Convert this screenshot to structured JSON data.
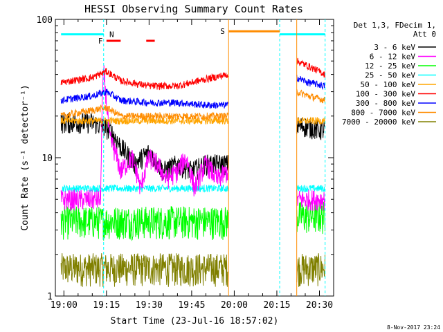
{
  "chart_data": {
    "type": "line",
    "title": "HESSI Observing Summary Count Rates",
    "xlabel": "Start Time (23-Jul-16 18:57:02)",
    "ylabel": "Count Rate (s⁻¹ detector⁻¹)",
    "x_tick_labels": [
      "19:00",
      "19:15",
      "19:30",
      "19:45",
      "20:00",
      "20:15",
      "20:30"
    ],
    "y_tick_labels": [
      "1",
      "10",
      "100"
    ],
    "y_scale": "log",
    "ylim": [
      1,
      100
    ],
    "xlim_minutes_after_19_00": [
      -3,
      95
    ],
    "legend_header": [
      "Det 1,3, FDecim 1,",
      "Att 0"
    ],
    "legend_position": "right",
    "footer_date": "8-Nov-2017 23:24",
    "series": [
      {
        "name": "3 - 6 keV",
        "color": "#000000",
        "x": [
          -1,
          10,
          16,
          20,
          25,
          30,
          35,
          40,
          45,
          50,
          55,
          57.9,
          82,
          84,
          90,
          92
        ],
        "y": [
          18,
          18,
          16,
          12,
          9,
          11,
          8,
          9,
          8,
          9,
          9,
          9,
          17,
          17,
          16,
          16
        ]
      },
      {
        "name": "6 - 12 keV",
        "color": "#ff00ff",
        "x": [
          -1,
          10,
          13,
          14,
          15,
          16,
          20,
          24,
          27,
          30,
          33,
          36,
          40,
          43,
          46,
          50,
          54,
          57.9,
          82,
          84,
          90,
          92
        ],
        "y": [
          5,
          5,
          5,
          42,
          25,
          14,
          8,
          10,
          6,
          10,
          9,
          7,
          8,
          10,
          6,
          9,
          7,
          8,
          5,
          5,
          5,
          5
        ]
      },
      {
        "name": "12 - 25 keV",
        "color": "#00ff00",
        "x": [
          -1,
          57.9,
          82,
          92
        ],
        "y": [
          3.5,
          3.5,
          3.8,
          3.8
        ]
      },
      {
        "name": "25 - 50 keV",
        "color": "#00ffff",
        "x": [
          -1,
          57.9,
          82,
          92
        ],
        "y": [
          6.0,
          6.0,
          6.0,
          6.0
        ]
      },
      {
        "name": "50 - 100 keV",
        "color": "#ffa500",
        "x": [
          -1,
          57.9,
          82,
          92
        ],
        "y": [
          18.5,
          18.5,
          18.5,
          18.5
        ]
      },
      {
        "name": "100 - 300 keV",
        "color": "#ff0000",
        "x": [
          -1,
          10,
          15,
          20,
          30,
          40,
          50,
          57.9,
          82,
          84,
          88,
          92
        ],
        "y": [
          35,
          38,
          42,
          36,
          33,
          33,
          37,
          40,
          50,
          48,
          44,
          40
        ]
      },
      {
        "name": "300 - 800 keV",
        "color": "#0000ff",
        "x": [
          -1,
          10,
          15,
          20,
          30,
          40,
          50,
          57.9,
          82,
          86,
          92
        ],
        "y": [
          26,
          28,
          30,
          26,
          25,
          25,
          24,
          24,
          38,
          35,
          33
        ]
      },
      {
        "name": "800 - 7000 keV",
        "color": "#ff8c00",
        "x": [
          -1,
          10,
          15,
          20,
          30,
          40,
          50,
          57.9,
          82,
          86,
          92
        ],
        "y": [
          20,
          22,
          23,
          20,
          20,
          20,
          20,
          20,
          30,
          28,
          26
        ]
      },
      {
        "name": "7000 - 20000 keV",
        "color": "#808000",
        "x": [
          -1,
          57.9,
          82,
          92
        ],
        "y": [
          1.6,
          1.6,
          1.6,
          1.6
        ]
      }
    ],
    "markers": [
      {
        "label": "F",
        "color": "#ff0000",
        "segments": [
          [
            15,
            20
          ],
          [
            29,
            32
          ]
        ],
        "y": 70
      },
      {
        "label": "N",
        "color": "#00ffff",
        "x": 16
      },
      {
        "label": "S",
        "color": "#ff8c00",
        "segments": [
          [
            58,
            76
          ]
        ],
        "y": 82
      }
    ],
    "top_bar_color": "#00ffff",
    "top_bar_segments": [
      [
        -1,
        14
      ],
      [
        76,
        92
      ]
    ]
  }
}
